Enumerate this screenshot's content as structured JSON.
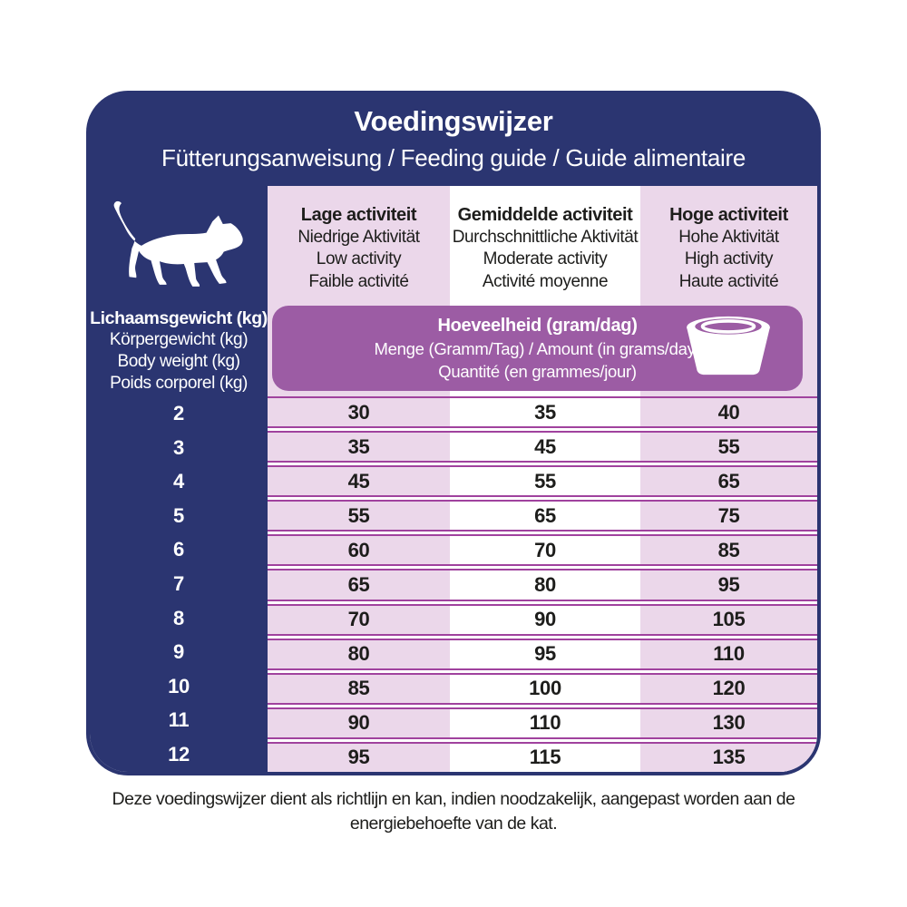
{
  "colors": {
    "navy": "#2b3571",
    "light_purple": "#ebd7ea",
    "banner_purple": "#9c5ca4",
    "separator": "#a0429e",
    "text": "#1d1d1b",
    "white": "#ffffff"
  },
  "header": {
    "title": "Voedingswijzer",
    "subtitle": "Fütterungsanweisung / Feeding guide / Guide alimentaire"
  },
  "sidebar": {
    "icon": "cat-icon",
    "weight_labels": [
      "Lichaamsgewicht (kg)",
      "Körpergewicht (kg)",
      "Body weight (kg)",
      "Poids corporel (kg)"
    ]
  },
  "columns": [
    {
      "labels": [
        "Lage activiteit",
        "Niedrige Aktivität",
        "Low activity",
        "Faible activité"
      ]
    },
    {
      "labels": [
        "Gemiddelde activiteit",
        "Durchschnittliche Aktivität",
        "Moderate activity",
        "Activité moyenne"
      ]
    },
    {
      "labels": [
        "Hoge activiteit",
        "Hohe Aktivität",
        "High activity",
        "Haute activité"
      ]
    }
  ],
  "banner": {
    "icon": "pet-bowl-icon",
    "lines": [
      "Hoeveelheid (gram/dag)",
      "Menge (Gramm/Tag) / Amount (in grams/day)",
      "Quantité (en grammes/jour)"
    ]
  },
  "chart_data": {
    "type": "table",
    "title": "Voedingswijzer",
    "row_header": "Lichaamsgewicht (kg)",
    "column_headers": [
      "Lage activiteit",
      "Gemiddelde activiteit",
      "Hoge activiteit"
    ],
    "unit": "gram/dag",
    "weights": [
      2,
      3,
      4,
      5,
      6,
      7,
      8,
      9,
      10,
      11,
      12
    ],
    "rows": [
      [
        30,
        35,
        40
      ],
      [
        35,
        45,
        55
      ],
      [
        45,
        55,
        65
      ],
      [
        55,
        65,
        75
      ],
      [
        60,
        70,
        85
      ],
      [
        65,
        80,
        95
      ],
      [
        70,
        90,
        105
      ],
      [
        80,
        95,
        110
      ],
      [
        85,
        100,
        120
      ],
      [
        90,
        110,
        130
      ],
      [
        95,
        115,
        135
      ]
    ]
  },
  "footer": {
    "lines": [
      "Deze voedingswijzer dient als richtlijn en kan, indien noodzakelijk, aangepast worden aan de",
      "energiebehoefte van de kat."
    ]
  }
}
